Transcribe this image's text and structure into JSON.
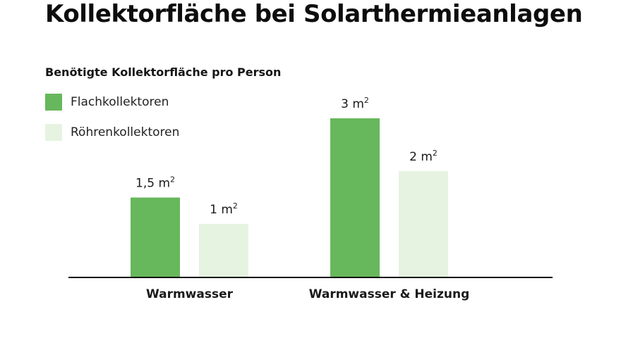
{
  "title": "Kollektorfläche bei Solarthermieanlagen",
  "subtitle": "Benötigte Kollektorfläche pro Person",
  "colors": {
    "flach": "#67b75c",
    "roehren": "#e6f3e1",
    "axis": "#111111"
  },
  "chart_data": {
    "type": "bar",
    "categories": [
      "Warmwasser",
      "Warmwasser & Heizung"
    ],
    "series": [
      {
        "name": "Flachkollektoren",
        "values": [
          1.5,
          3
        ],
        "labels": [
          "1,5 m",
          "3 m"
        ],
        "label_sup": "2",
        "color": "#67b75c"
      },
      {
        "name": "Röhrenkollektoren",
        "values": [
          1,
          2
        ],
        "labels": [
          "1 m",
          "2 m"
        ],
        "label_sup": "2",
        "color": "#e6f3e1"
      }
    ],
    "title": "Kollektorfläche bei Solarthermieanlagen",
    "subtitle": "Benötigte Kollektorfläche pro Person",
    "xlabel": "",
    "ylabel": "",
    "ylim": [
      0,
      3
    ],
    "grid": false,
    "legend": "top-left"
  }
}
